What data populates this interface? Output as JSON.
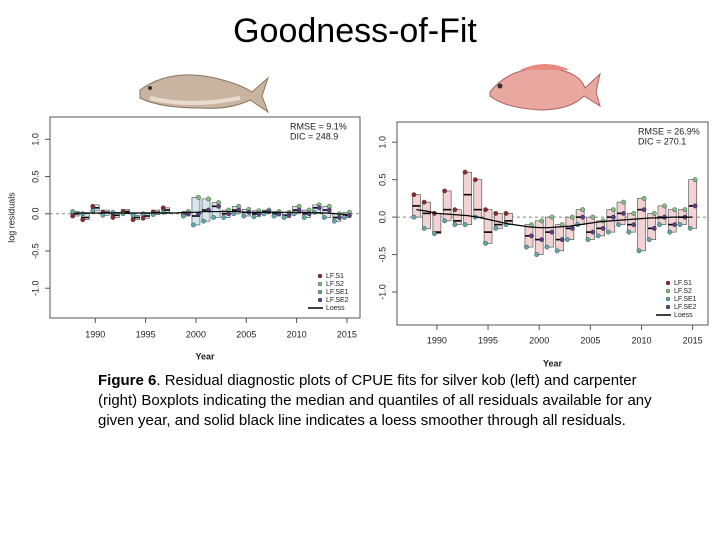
{
  "title": "Goodness-of-Fit",
  "caption": {
    "label": "Figure 6",
    "text": ". Residual diagnostic plots of CPUE fits for silver kob (left) and carpenter (right) Boxplots indicating the median and quantiles of all residuals available for any given year, and solid black line indicates a loess smoother through all residuals."
  },
  "chart_data": [
    {
      "type": "box",
      "xlabel": "Year",
      "ylabel": "log residuals",
      "annotations": [
        "RMSE = 9.1%",
        "DIC = 248.9"
      ],
      "xlim": [
        1985.5,
        2016.3
      ],
      "xticks": [
        1990,
        1995,
        2000,
        2005,
        2010,
        2015
      ],
      "ylim": [
        -1.4,
        1.3
      ],
      "yticks": [
        {
          "value": -1,
          "label": "-1.0"
        },
        {
          "value": -0.5,
          "label": "-0.5"
        },
        {
          "value": 0,
          "label": "0.0"
        },
        {
          "value": 0.5,
          "label": "0.5"
        },
        {
          "value": 1,
          "label": "1.0"
        }
      ],
      "legend": "lower right",
      "box_color": "#d6e6ee",
      "loess_label": "Loess",
      "loess_color": "#000000",
      "x": [
        1988,
        1989,
        1990,
        1991,
        1992,
        1993,
        1994,
        1995,
        1996,
        1997,
        1998,
        1999,
        2000,
        2001,
        2002,
        2003,
        2004,
        2005,
        2006,
        2007,
        2008,
        2009,
        2010,
        2011,
        2012,
        2013,
        2014,
        2015
      ],
      "q1": [
        -0.03,
        -0.08,
        0.04,
        -0.02,
        -0.05,
        0.0,
        -0.08,
        -0.06,
        -0.01,
        0.02,
        null,
        -0.03,
        -0.15,
        -0.1,
        -0.05,
        -0.05,
        0.0,
        -0.03,
        -0.04,
        0.0,
        -0.03,
        -0.05,
        0.0,
        -0.05,
        0.02,
        -0.05,
        -0.1,
        -0.05
      ],
      "median": [
        0.0,
        -0.05,
        0.08,
        0.02,
        -0.02,
        0.03,
        -0.05,
        -0.03,
        0.02,
        0.05,
        null,
        0.0,
        -0.03,
        0.05,
        0.1,
        0.0,
        0.05,
        0.02,
        0.0,
        0.03,
        0.0,
        -0.02,
        0.05,
        0.0,
        0.08,
        0.05,
        -0.05,
        -0.02
      ],
      "q3": [
        0.03,
        0.0,
        0.12,
        0.05,
        0.02,
        0.06,
        -0.02,
        0.0,
        0.05,
        0.08,
        null,
        0.03,
        0.22,
        0.2,
        0.15,
        0.05,
        0.1,
        0.06,
        0.04,
        0.05,
        0.03,
        0.02,
        0.1,
        0.05,
        0.12,
        0.1,
        0.0,
        0.02
      ],
      "loess": [
        0.01,
        0.01,
        0.01,
        0.01,
        0.01,
        0.01,
        0.01,
        0.01,
        0.01,
        0.01,
        0.01,
        0.02,
        0.02,
        0.03,
        0.03,
        0.03,
        0.03,
        0.02,
        0.02,
        0.02,
        0.02,
        0.02,
        0.02,
        0.02,
        0.01,
        0.01,
        0.0,
        -0.01
      ],
      "series": [
        {
          "name": "LF.S1",
          "color": "#8b2a2a",
          "values": [
            -0.03,
            -0.08,
            0.1,
            0.02,
            -0.05,
            0.03,
            -0.08,
            -0.06,
            0.02,
            0.08,
            null,
            0.0,
            null,
            null,
            null,
            null,
            null,
            null,
            null,
            null,
            null,
            null,
            null,
            null,
            null,
            null,
            null,
            null
          ]
        },
        {
          "name": "LF.S2",
          "color": "#7fbf7f",
          "values": [
            null,
            null,
            null,
            null,
            null,
            null,
            null,
            null,
            null,
            null,
            null,
            0.03,
            0.22,
            0.2,
            0.15,
            0.05,
            0.1,
            0.06,
            0.04,
            0.05,
            0.03,
            0.02,
            0.1,
            0.05,
            0.12,
            0.1,
            0.0,
            0.02
          ]
        },
        {
          "name": "LF.SE1",
          "color": "#5fa8b0",
          "values": [
            0.03,
            0.0,
            0.04,
            -0.02,
            0.02,
            0.0,
            -0.02,
            0.0,
            -0.01,
            0.02,
            null,
            -0.03,
            -0.15,
            -0.1,
            -0.05,
            -0.05,
            0.0,
            -0.03,
            -0.04,
            0.0,
            -0.03,
            -0.05,
            0.0,
            -0.05,
            0.02,
            -0.05,
            -0.1,
            -0.05
          ]
        },
        {
          "name": "LF.SE2",
          "color": "#5a3d8a",
          "values": [
            null,
            null,
            null,
            null,
            null,
            null,
            null,
            null,
            null,
            null,
            null,
            0.0,
            0.0,
            0.05,
            0.1,
            0.0,
            0.05,
            0.02,
            0.0,
            0.03,
            0.0,
            -0.02,
            0.05,
            0.0,
            0.08,
            0.05,
            -0.05,
            -0.02
          ]
        }
      ]
    },
    {
      "type": "box",
      "xlabel": "Year",
      "annotations": [
        "RMSE = 26.9%",
        "DIC = 270.1"
      ],
      "xlim": [
        1986.1,
        2016.5
      ],
      "xticks": [
        1990,
        1995,
        2000,
        2005,
        2010,
        2015
      ],
      "ylim": [
        -1.44,
        1.27
      ],
      "yticks": [
        {
          "value": -1,
          "label": "-1.0"
        },
        {
          "value": -0.5,
          "label": "-0.5"
        },
        {
          "value": 0,
          "label": "0.0"
        },
        {
          "value": 0.5,
          "label": "0.5"
        },
        {
          "value": 1,
          "label": "1.0"
        }
      ],
      "legend": "lower right",
      "box_color": "#f2d2d2",
      "loess_label": "Loess",
      "loess_color": "#000000",
      "x": [
        1988,
        1989,
        1990,
        1991,
        1992,
        1993,
        1994,
        1995,
        1996,
        1997,
        1998,
        1999,
        2000,
        2001,
        2002,
        2003,
        2004,
        2005,
        2006,
        2007,
        2008,
        2009,
        2010,
        2011,
        2012,
        2013,
        2014,
        2015
      ],
      "q1": [
        0.0,
        -0.15,
        -0.22,
        -0.05,
        -0.1,
        -0.1,
        0.0,
        -0.35,
        -0.15,
        -0.1,
        null,
        -0.4,
        -0.5,
        -0.4,
        -0.45,
        -0.3,
        -0.1,
        -0.3,
        -0.25,
        -0.2,
        -0.1,
        -0.2,
        -0.45,
        -0.3,
        -0.1,
        -0.2,
        -0.1,
        -0.15
      ],
      "median": [
        0.15,
        0.05,
        -0.2,
        0.1,
        -0.05,
        0.3,
        0.1,
        -0.2,
        -0.1,
        -0.05,
        null,
        -0.25,
        -0.3,
        -0.2,
        -0.3,
        -0.15,
        0.0,
        -0.2,
        -0.15,
        0.0,
        0.05,
        -0.1,
        0.1,
        -0.15,
        0.0,
        -0.1,
        0.0,
        0.15
      ],
      "q3": [
        0.3,
        0.2,
        0.05,
        0.35,
        0.1,
        0.6,
        0.5,
        0.1,
        0.05,
        0.05,
        null,
        -0.1,
        -0.05,
        0.0,
        -0.1,
        0.0,
        0.1,
        0.0,
        -0.05,
        0.1,
        0.2,
        0.05,
        0.25,
        0.05,
        0.15,
        0.1,
        0.1,
        0.5
      ],
      "loess": [
        0.1,
        0.08,
        0.05,
        0.04,
        0.03,
        0.02,
        0.0,
        -0.03,
        -0.06,
        -0.09,
        -0.11,
        -0.13,
        -0.14,
        -0.14,
        -0.13,
        -0.12,
        -0.1,
        -0.08,
        -0.06,
        -0.05,
        -0.04,
        -0.03,
        -0.02,
        -0.01,
        -0.01,
        0.0,
        0.0,
        0.0
      ],
      "series": [
        {
          "name": "LF.S1",
          "color": "#8b2a2a",
          "values": [
            0.3,
            0.2,
            0.05,
            0.35,
            0.1,
            0.6,
            0.5,
            0.1,
            0.05,
            0.05,
            null,
            null,
            null,
            null,
            null,
            null,
            null,
            null,
            null,
            null,
            null,
            null,
            null,
            null,
            null,
            null,
            null,
            null
          ]
        },
        {
          "name": "LF.S2",
          "color": "#7fbf7f",
          "values": [
            null,
            null,
            null,
            null,
            null,
            null,
            null,
            null,
            null,
            null,
            null,
            -0.1,
            -0.05,
            0.0,
            -0.1,
            0.0,
            0.1,
            0.0,
            -0.05,
            0.1,
            0.2,
            0.05,
            0.25,
            0.05,
            0.15,
            0.1,
            0.1,
            0.5
          ]
        },
        {
          "name": "LF.SE1",
          "color": "#5fa8b0",
          "values": [
            0.0,
            -0.15,
            -0.22,
            -0.05,
            -0.1,
            -0.1,
            0.0,
            -0.35,
            -0.15,
            -0.1,
            null,
            -0.4,
            -0.5,
            -0.4,
            -0.45,
            -0.3,
            -0.1,
            -0.3,
            -0.25,
            -0.2,
            -0.1,
            -0.2,
            -0.45,
            -0.3,
            -0.1,
            -0.2,
            -0.1,
            -0.15
          ]
        },
        {
          "name": "LF.SE2",
          "color": "#5a3d8a",
          "values": [
            null,
            null,
            null,
            null,
            null,
            null,
            null,
            null,
            null,
            null,
            null,
            -0.25,
            -0.3,
            -0.2,
            -0.3,
            -0.15,
            0.0,
            -0.2,
            -0.15,
            0.0,
            0.05,
            -0.1,
            0.1,
            -0.15,
            0.0,
            -0.1,
            0.0,
            0.15
          ]
        }
      ]
    }
  ]
}
